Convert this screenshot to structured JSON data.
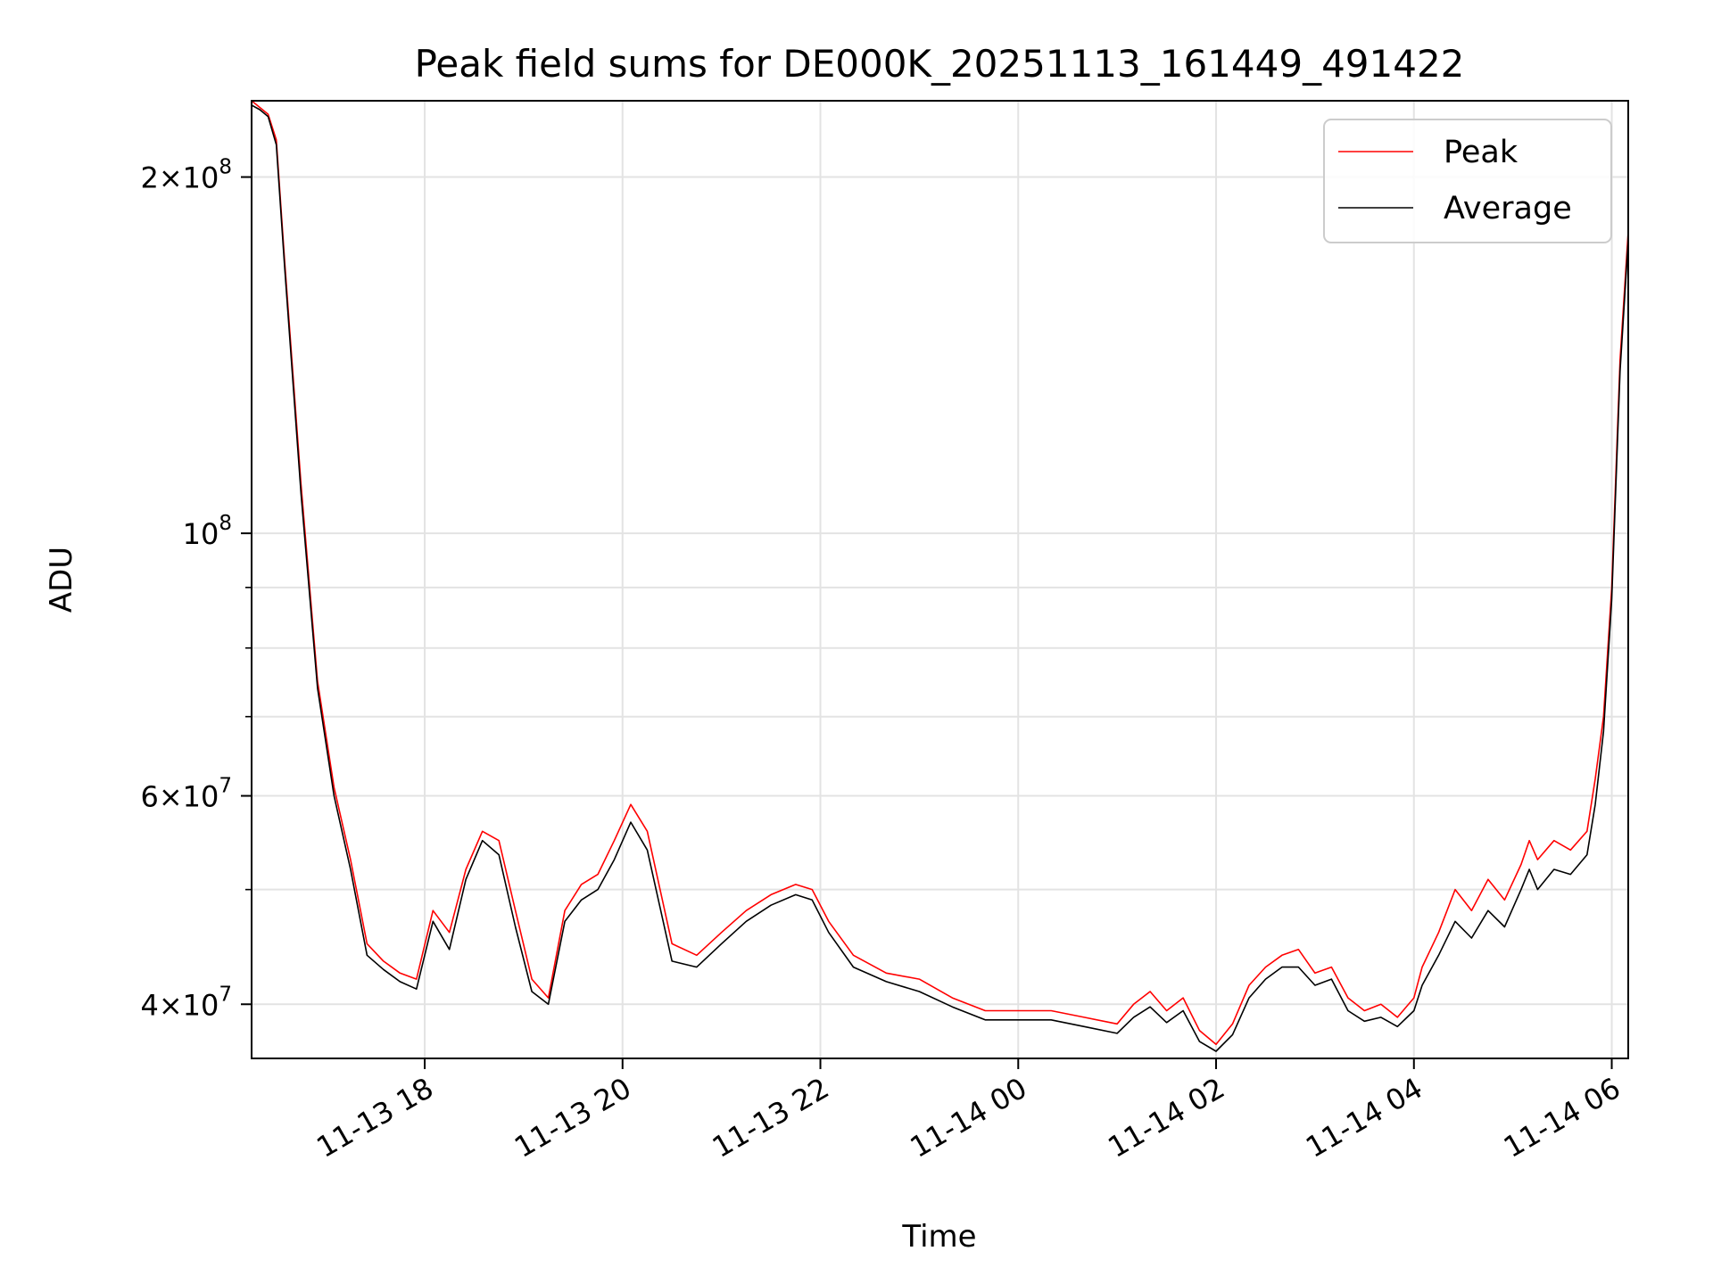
{
  "chart_data": {
    "type": "line",
    "title": "Peak field sums for DE000K_20251113_161449_491422",
    "xlabel": "Time",
    "ylabel": "ADU",
    "yscale": "log",
    "grid": true,
    "legend_position": "top-right",
    "xlim": [
      "2025-11-13 16:15",
      "2025-11-14 06:10"
    ],
    "ylim": [
      36000000,
      232000000
    ],
    "x_ticks": [
      {
        "value": "2025-11-13 18:00",
        "label": "11-13 18"
      },
      {
        "value": "2025-11-13 20:00",
        "label": "11-13 20"
      },
      {
        "value": "2025-11-13 22:00",
        "label": "11-13 22"
      },
      {
        "value": "2025-11-14 00:00",
        "label": "11-14 00"
      },
      {
        "value": "2025-11-14 02:00",
        "label": "11-14 02"
      },
      {
        "value": "2025-11-14 04:00",
        "label": "11-14 04"
      },
      {
        "value": "2025-11-14 06:00",
        "label": "11-14 06"
      }
    ],
    "y_ticks": [
      {
        "value": 40000000,
        "mantissa": "4",
        "exponent": "7"
      },
      {
        "value": 60000000,
        "mantissa": "6",
        "exponent": "7"
      },
      {
        "value": 100000000,
        "mantissa": "",
        "exponent": "8"
      },
      {
        "value": 200000000,
        "mantissa": "2",
        "exponent": "8"
      }
    ],
    "y_minor_ticks": [
      50000000,
      70000000,
      80000000,
      90000000
    ],
    "series": [
      {
        "name": "Peak",
        "color": "#ff0000",
        "x": [
          "2025-11-13 16:15",
          "2025-11-13 16:20",
          "2025-11-13 16:25",
          "2025-11-13 16:30",
          "2025-11-13 16:35",
          "2025-11-13 16:45",
          "2025-11-13 16:55",
          "2025-11-13 17:05",
          "2025-11-13 17:15",
          "2025-11-13 17:25",
          "2025-11-13 17:35",
          "2025-11-13 17:45",
          "2025-11-13 17:55",
          "2025-11-13 18:05",
          "2025-11-13 18:15",
          "2025-11-13 18:25",
          "2025-11-13 18:35",
          "2025-11-13 18:45",
          "2025-11-13 18:55",
          "2025-11-13 19:05",
          "2025-11-13 19:15",
          "2025-11-13 19:25",
          "2025-11-13 19:35",
          "2025-11-13 19:45",
          "2025-11-13 19:55",
          "2025-11-13 20:05",
          "2025-11-13 20:15",
          "2025-11-13 20:30",
          "2025-11-13 20:45",
          "2025-11-13 21:00",
          "2025-11-13 21:15",
          "2025-11-13 21:30",
          "2025-11-13 21:45",
          "2025-11-13 21:55",
          "2025-11-13 22:05",
          "2025-11-13 22:20",
          "2025-11-13 22:40",
          "2025-11-13 23:00",
          "2025-11-13 23:20",
          "2025-11-13 23:40",
          "2025-11-14 00:00",
          "2025-11-14 00:20",
          "2025-11-14 00:40",
          "2025-11-14 01:00",
          "2025-11-14 01:10",
          "2025-11-14 01:20",
          "2025-11-14 01:30",
          "2025-11-14 01:40",
          "2025-11-14 01:50",
          "2025-11-14 02:00",
          "2025-11-14 02:10",
          "2025-11-14 02:20",
          "2025-11-14 02:30",
          "2025-11-14 02:40",
          "2025-11-14 02:50",
          "2025-11-14 03:00",
          "2025-11-14 03:10",
          "2025-11-14 03:20",
          "2025-11-14 03:30",
          "2025-11-14 03:40",
          "2025-11-14 03:50",
          "2025-11-14 04:00",
          "2025-11-14 04:05",
          "2025-11-14 04:15",
          "2025-11-14 04:25",
          "2025-11-14 04:35",
          "2025-11-14 04:45",
          "2025-11-14 04:55",
          "2025-11-14 05:05",
          "2025-11-14 05:10",
          "2025-11-14 05:15",
          "2025-11-14 05:25",
          "2025-11-14 05:35",
          "2025-11-14 05:45",
          "2025-11-14 05:50",
          "2025-11-14 05:55",
          "2025-11-14 06:00",
          "2025-11-14 06:05",
          "2025-11-14 06:10"
        ],
        "values": [
          232000000,
          229000000,
          226000000,
          215000000,
          170000000,
          110000000,
          75000000,
          61000000,
          53000000,
          45000000,
          43500000,
          42500000,
          42000000,
          48000000,
          46000000,
          52000000,
          56000000,
          55000000,
          48000000,
          42000000,
          40500000,
          48000000,
          50500000,
          51500000,
          55000000,
          59000000,
          56000000,
          45000000,
          44000000,
          46000000,
          48000000,
          49500000,
          50500000,
          50000000,
          47000000,
          44000000,
          42500000,
          42000000,
          40500000,
          39500000,
          39500000,
          39500000,
          39000000,
          38500000,
          40000000,
          41000000,
          39500000,
          40500000,
          38000000,
          37000000,
          38500000,
          41500000,
          43000000,
          44000000,
          44500000,
          42500000,
          43000000,
          40500000,
          39500000,
          40000000,
          39000000,
          40500000,
          43000000,
          46000000,
          50000000,
          48000000,
          51000000,
          49000000,
          52500000,
          55000000,
          53000000,
          55000000,
          54000000,
          56000000,
          62000000,
          70000000,
          90000000,
          140000000,
          180000000
        ]
      },
      {
        "name": "Average",
        "color": "#000000",
        "x": [
          "2025-11-13 16:15",
          "2025-11-13 16:20",
          "2025-11-13 16:25",
          "2025-11-13 16:30",
          "2025-11-13 16:35",
          "2025-11-13 16:45",
          "2025-11-13 16:55",
          "2025-11-13 17:05",
          "2025-11-13 17:15",
          "2025-11-13 17:25",
          "2025-11-13 17:35",
          "2025-11-13 17:45",
          "2025-11-13 17:55",
          "2025-11-13 18:05",
          "2025-11-13 18:15",
          "2025-11-13 18:25",
          "2025-11-13 18:35",
          "2025-11-13 18:45",
          "2025-11-13 18:55",
          "2025-11-13 19:05",
          "2025-11-13 19:15",
          "2025-11-13 19:25",
          "2025-11-13 19:35",
          "2025-11-13 19:45",
          "2025-11-13 19:55",
          "2025-11-13 20:05",
          "2025-11-13 20:15",
          "2025-11-13 20:30",
          "2025-11-13 20:45",
          "2025-11-13 21:00",
          "2025-11-13 21:15",
          "2025-11-13 21:30",
          "2025-11-13 21:45",
          "2025-11-13 21:55",
          "2025-11-13 22:05",
          "2025-11-13 22:20",
          "2025-11-13 22:40",
          "2025-11-13 23:00",
          "2025-11-13 23:20",
          "2025-11-13 23:40",
          "2025-11-14 00:00",
          "2025-11-14 00:20",
          "2025-11-14 00:40",
          "2025-11-14 01:00",
          "2025-11-14 01:10",
          "2025-11-14 01:20",
          "2025-11-14 01:30",
          "2025-11-14 01:40",
          "2025-11-14 01:50",
          "2025-11-14 02:00",
          "2025-11-14 02:10",
          "2025-11-14 02:20",
          "2025-11-14 02:30",
          "2025-11-14 02:40",
          "2025-11-14 02:50",
          "2025-11-14 03:00",
          "2025-11-14 03:10",
          "2025-11-14 03:20",
          "2025-11-14 03:30",
          "2025-11-14 03:40",
          "2025-11-14 03:50",
          "2025-11-14 04:00",
          "2025-11-14 04:05",
          "2025-11-14 04:15",
          "2025-11-14 04:25",
          "2025-11-14 04:35",
          "2025-11-14 04:45",
          "2025-11-14 04:55",
          "2025-11-14 05:05",
          "2025-11-14 05:10",
          "2025-11-14 05:15",
          "2025-11-14 05:25",
          "2025-11-14 05:35",
          "2025-11-14 05:45",
          "2025-11-14 05:50",
          "2025-11-14 05:55",
          "2025-11-14 06:00",
          "2025-11-14 06:05",
          "2025-11-14 06:10"
        ],
        "values": [
          230000000,
          228000000,
          225000000,
          213000000,
          168000000,
          108000000,
          74000000,
          60000000,
          52000000,
          44000000,
          42800000,
          41800000,
          41200000,
          47000000,
          44500000,
          51000000,
          55000000,
          53500000,
          46500000,
          41000000,
          40000000,
          47000000,
          49000000,
          50000000,
          53000000,
          57000000,
          54000000,
          43500000,
          43000000,
          45000000,
          47000000,
          48500000,
          49500000,
          49000000,
          46000000,
          43000000,
          41800000,
          41000000,
          39800000,
          38800000,
          38800000,
          38800000,
          38300000,
          37800000,
          39000000,
          39800000,
          38600000,
          39500000,
          37200000,
          36500000,
          37700000,
          40500000,
          42000000,
          43000000,
          43000000,
          41500000,
          42000000,
          39500000,
          38700000,
          39000000,
          38300000,
          39500000,
          41500000,
          44000000,
          47000000,
          45500000,
          48000000,
          46500000,
          50000000,
          52000000,
          50000000,
          52000000,
          51500000,
          53500000,
          59000000,
          68000000,
          88000000,
          137000000,
          177000000
        ]
      }
    ]
  }
}
